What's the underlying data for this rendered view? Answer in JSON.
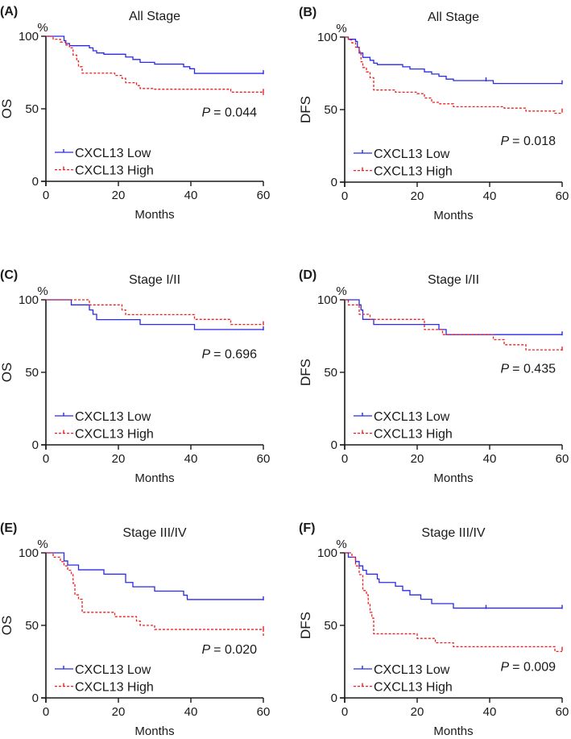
{
  "colors": {
    "low": "#2a2ae8",
    "high": "#f02020",
    "axis": "#1a1a1a"
  },
  "chart_data": [
    {
      "type": "line",
      "letter": "(A)",
      "title": "All Stage",
      "ylabel": "OS",
      "yunit": "%",
      "xlabel": "Months",
      "xlim": [
        0,
        60
      ],
      "ylim": [
        0,
        100
      ],
      "xticks": [
        "0",
        "20",
        "40",
        "60"
      ],
      "yticks": [
        "0",
        "50",
        "100"
      ],
      "p_label": "P",
      "p_value": "= 0.044",
      "series": [
        {
          "name": "CXCL13 Low",
          "steps": [
            [
              5,
              97
            ],
            [
              5.5,
              95
            ],
            [
              6.5,
              93.5
            ],
            [
              12,
              92
            ],
            [
              13,
              90
            ],
            [
              14,
              88.5
            ],
            [
              16,
              87.6
            ],
            [
              22,
              85.7
            ],
            [
              24,
              84
            ],
            [
              26,
              82
            ],
            [
              30,
              80.8
            ],
            [
              38,
              79
            ],
            [
              39.7,
              77.6
            ],
            [
              41,
              74.4
            ]
          ],
          "censored": [
            [
              60,
              74.4
            ]
          ]
        },
        {
          "name": "CXCL13 High",
          "steps": [
            [
              2,
              98
            ],
            [
              4,
              96
            ],
            [
              5.5,
              94
            ],
            [
              6.5,
              92
            ],
            [
              7.5,
              87
            ],
            [
              8.5,
              83
            ],
            [
              9,
              79
            ],
            [
              10,
              74.6
            ],
            [
              19,
              73
            ],
            [
              21,
              71
            ],
            [
              22,
              68
            ],
            [
              25,
              66
            ],
            [
              26,
              64
            ],
            [
              30,
              63.5
            ],
            [
              51,
              61.5
            ],
            [
              60,
              59
            ]
          ],
          "censored": [
            [
              60,
              61.5
            ]
          ]
        }
      ]
    },
    {
      "type": "line",
      "letter": "(B)",
      "title": "All Stage",
      "ylabel": "DFS",
      "yunit": "%",
      "xlabel": "Months",
      "xlim": [
        0,
        60
      ],
      "ylim": [
        0,
        100
      ],
      "xticks": [
        "0",
        "20",
        "40",
        "60"
      ],
      "yticks": [
        "0",
        "50",
        "100"
      ],
      "p_label": "P",
      "p_value": "= 0.018",
      "series": [
        {
          "name": "CXCL13 Low",
          "steps": [
            [
              1,
              98.5
            ],
            [
              3,
              97
            ],
            [
              3.5,
              93
            ],
            [
              4,
              89
            ],
            [
              5,
              86
            ],
            [
              7,
              84
            ],
            [
              8,
              82
            ],
            [
              9,
              81
            ],
            [
              16,
              79.5
            ],
            [
              18,
              78
            ],
            [
              22,
              76
            ],
            [
              24,
              74.5
            ],
            [
              26,
              73
            ],
            [
              28,
              71
            ],
            [
              30,
              70
            ],
            [
              41,
              68
            ]
          ],
          "censored": [
            [
              39,
              70
            ],
            [
              60,
              68
            ]
          ]
        },
        {
          "name": "CXCL13 High",
          "steps": [
            [
              1,
              98
            ],
            [
              2,
              96
            ],
            [
              3,
              93
            ],
            [
              4,
              90
            ],
            [
              4.5,
              83
            ],
            [
              5,
              79
            ],
            [
              6,
              76
            ],
            [
              7,
              72
            ],
            [
              8,
              63.5
            ],
            [
              14,
              62
            ],
            [
              20,
              61
            ],
            [
              22,
              58
            ],
            [
              24,
              55
            ],
            [
              26,
              54
            ],
            [
              30,
              52
            ],
            [
              44,
              51
            ],
            [
              50,
              49
            ],
            [
              58,
              47.5
            ]
          ],
          "censored": [
            [
              60,
              48.5
            ]
          ]
        }
      ]
    },
    {
      "type": "line",
      "letter": "(C)",
      "title": "Stage I/II",
      "ylabel": "OS",
      "yunit": "%",
      "xlabel": "Months",
      "xlim": [
        0,
        60
      ],
      "ylim": [
        0,
        100
      ],
      "xticks": [
        "0",
        "20",
        "40",
        "60"
      ],
      "yticks": [
        "0",
        "50",
        "100"
      ],
      "p_label": "P",
      "p_value": "= 0.696",
      "series": [
        {
          "name": "CXCL13 Low",
          "steps": [
            [
              7,
              96.5
            ],
            [
              12,
              93
            ],
            [
              13,
              90
            ],
            [
              14,
              86.3
            ],
            [
              26,
              83
            ],
            [
              41,
              79.5
            ]
          ],
          "censored": [
            [
              60,
              79.5
            ]
          ]
        },
        {
          "name": "CXCL13 High",
          "steps": [
            [
              12,
              96.5
            ],
            [
              21,
              93
            ],
            [
              22,
              89.8
            ],
            [
              41,
              86.5
            ],
            [
              51,
              83
            ]
          ],
          "censored": [
            [
              60,
              83
            ]
          ]
        }
      ]
    },
    {
      "type": "line",
      "letter": "(D)",
      "title": "Stage I/II",
      "ylabel": "DFS",
      "yunit": "%",
      "xlabel": "Months",
      "xlim": [
        0,
        60
      ],
      "ylim": [
        0,
        100
      ],
      "xticks": [
        "0",
        "20",
        "40",
        "60"
      ],
      "yticks": [
        "0",
        "50",
        "100"
      ],
      "p_label": "P",
      "p_value": "= 0.435",
      "series": [
        {
          "name": "CXCL13 Low",
          "steps": [
            [
              4,
              96.5
            ],
            [
              4.5,
              93
            ],
            [
              5,
              86.5
            ],
            [
              8,
              83
            ],
            [
              26,
              79.5
            ],
            [
              28,
              76
            ]
          ],
          "censored": [
            [
              60,
              76
            ]
          ]
        },
        {
          "name": "CXCL13 High",
          "steps": [
            [
              1,
              96.5
            ],
            [
              4,
              90
            ],
            [
              7,
              86.5
            ],
            [
              22,
              79.5
            ],
            [
              27,
              76
            ],
            [
              41,
              72.5
            ],
            [
              44,
              69
            ],
            [
              50,
              65.5
            ]
          ],
          "censored": [
            [
              60,
              65.5
            ]
          ]
        }
      ]
    },
    {
      "type": "line",
      "letter": "(E)",
      "title": "Stage III/IV",
      "ylabel": "OS",
      "yunit": "%",
      "xlabel": "Months",
      "xlim": [
        0,
        60
      ],
      "ylim": [
        0,
        100
      ],
      "xticks": [
        "0",
        "20",
        "40",
        "60"
      ],
      "yticks": [
        "0",
        "50",
        "100"
      ],
      "p_label": "P",
      "p_value": "= 0.020",
      "series": [
        {
          "name": "CXCL13 Low",
          "steps": [
            [
              5,
              94.4
            ],
            [
              6,
              91.6
            ],
            [
              9,
              88.3
            ],
            [
              16,
              85.3
            ],
            [
              22,
              79.6
            ],
            [
              24,
              76.6
            ],
            [
              30,
              73.6
            ],
            [
              38,
              70.8
            ],
            [
              39,
              67.8
            ]
          ],
          "censored": [
            [
              60,
              67.8
            ]
          ]
        },
        {
          "name": "CXCL13 High",
          "steps": [
            [
              2,
              97
            ],
            [
              4,
              94
            ],
            [
              5,
              91
            ],
            [
              6,
              88
            ],
            [
              7,
              85
            ],
            [
              7.5,
              79
            ],
            [
              8,
              71
            ],
            [
              9,
              68
            ],
            [
              10,
              59
            ],
            [
              19,
              56
            ],
            [
              25,
              53
            ],
            [
              26,
              50
            ],
            [
              30,
              47.2
            ],
            [
              60,
              42
            ]
          ],
          "censored": [
            [
              60,
              47.2
            ]
          ]
        }
      ]
    },
    {
      "type": "line",
      "letter": "(F)",
      "title": "Stage III/IV",
      "ylabel": "DFS",
      "yunit": "%",
      "xlabel": "Months",
      "xlim": [
        0,
        60
      ],
      "ylim": [
        0,
        100
      ],
      "xticks": [
        "0",
        "20",
        "40",
        "60"
      ],
      "yticks": [
        "0",
        "50",
        "100"
      ],
      "p_label": "P",
      "p_value": "= 0.009",
      "series": [
        {
          "name": "CXCL13 Low",
          "steps": [
            [
              1,
              97
            ],
            [
              3,
              94
            ],
            [
              4,
              91
            ],
            [
              5,
              88
            ],
            [
              6,
              85.3
            ],
            [
              9,
              82
            ],
            [
              9.5,
              79.6
            ],
            [
              14,
              77
            ],
            [
              16,
              74
            ],
            [
              18,
              71
            ],
            [
              21,
              68
            ],
            [
              24,
              65
            ],
            [
              30,
              61.9
            ]
          ],
          "censored": [
            [
              39,
              61.9
            ],
            [
              60,
              61.9
            ]
          ]
        },
        {
          "name": "CXCL13 High",
          "steps": [
            [
              2,
              97
            ],
            [
              3,
              91
            ],
            [
              4,
              85
            ],
            [
              5,
              74
            ],
            [
              6,
              71
            ],
            [
              6.5,
              65
            ],
            [
              7,
              59
            ],
            [
              7.5,
              55
            ],
            [
              8,
              44.2
            ],
            [
              20,
              41
            ],
            [
              25,
              38
            ],
            [
              30,
              35.3
            ],
            [
              58,
              32
            ]
          ],
          "censored": [
            [
              60,
              33
            ]
          ]
        }
      ]
    }
  ]
}
